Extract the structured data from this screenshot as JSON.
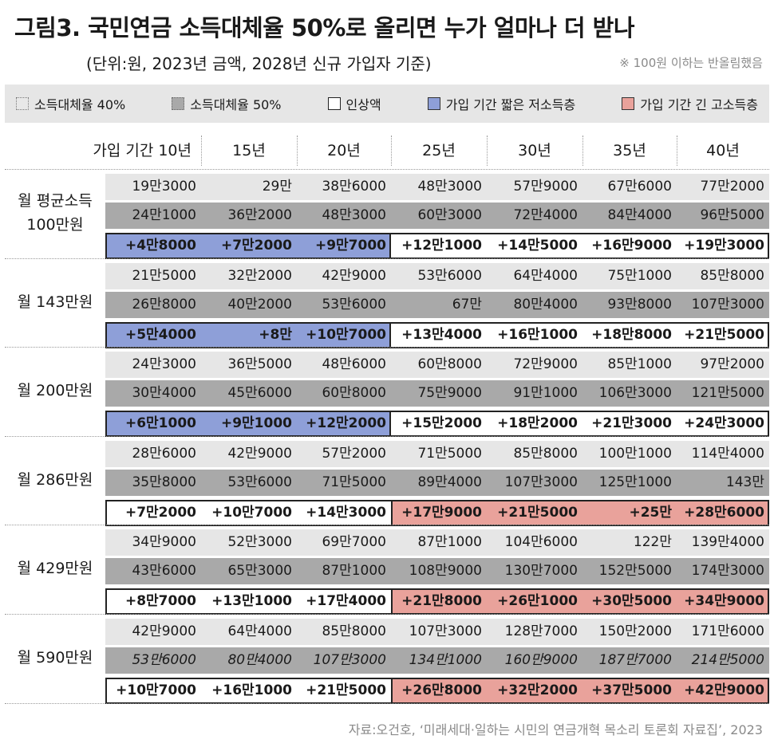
{
  "header": {
    "title": "그림3. 국민연금 소득대체율 50%로 올리면 누가 얼마나 더 받나",
    "subtitle": "(단위:원, 2023년 금액, 2028년 신규 가입자 기준)",
    "note": "※ 100원 이하는 반올림했음"
  },
  "legend": [
    {
      "label": "소득대체율 40%",
      "swatch": "s40"
    },
    {
      "label": "소득대체율 50%",
      "swatch": "s50"
    },
    {
      "label": "인상액",
      "swatch": "inc"
    },
    {
      "label": "가입 기간 짧은 저소득층",
      "swatch": "low"
    },
    {
      "label": "가입 기간 긴 고소득층",
      "swatch": "high"
    }
  ],
  "colors": {
    "rate40": "#e6e6e6",
    "rate50": "#a9a9a9",
    "low_income_short": "#8e9fd8",
    "high_income_long": "#e9a29b"
  },
  "source": "자료:오건호, ‘미래세대·일하는 시민의 연금개혁 목소리 토론회 자료집’, 2023",
  "chart_data": {
    "type": "table",
    "columns": [
      "가입 기간 10년",
      "15년",
      "20년",
      "25년",
      "30년",
      "35년",
      "40년"
    ],
    "groups": [
      {
        "label": "월 평균소득\n100만원",
        "rate40": [
          "19만3000",
          "29만",
          "38만6000",
          "48만3000",
          "57만9000",
          "67만6000",
          "77만2000"
        ],
        "rate50": [
          "24만1000",
          "36만2000",
          "48만3000",
          "60만3000",
          "72만4000",
          "84만4000",
          "96만5000"
        ],
        "increase": [
          "+4만8000",
          "+7만2000",
          "+9만7000",
          "+12만1000",
          "+14만5000",
          "+16만9000",
          "+19만3000"
        ],
        "highlight": {
          "type": "low",
          "from": 0,
          "to": 2
        }
      },
      {
        "label": "월 143만원",
        "rate40": [
          "21만5000",
          "32만2000",
          "42만9000",
          "53만6000",
          "64만4000",
          "75만1000",
          "85만8000"
        ],
        "rate50": [
          "26만8000",
          "40만2000",
          "53만6000",
          "67만",
          "80만4000",
          "93만8000",
          "107만3000"
        ],
        "increase": [
          "+5만4000",
          "+8만",
          "+10만7000",
          "+13만4000",
          "+16만1000",
          "+18만8000",
          "+21만5000"
        ],
        "highlight": {
          "type": "low",
          "from": 0,
          "to": 2
        }
      },
      {
        "label": "월 200만원",
        "rate40": [
          "24만3000",
          "36만5000",
          "48만6000",
          "60만8000",
          "72만9000",
          "85만1000",
          "97만2000"
        ],
        "rate50": [
          "30만4000",
          "45만6000",
          "60만8000",
          "75만9000",
          "91만1000",
          "106만3000",
          "121만5000"
        ],
        "increase": [
          "+6만1000",
          "+9만1000",
          "+12만2000",
          "+15만2000",
          "+18만2000",
          "+21만3000",
          "+24만3000"
        ],
        "highlight": {
          "type": "low",
          "from": 0,
          "to": 2
        }
      },
      {
        "label": "월 286만원",
        "rate40": [
          "28만6000",
          "42만9000",
          "57만2000",
          "71만5000",
          "85만8000",
          "100만1000",
          "114만4000"
        ],
        "rate50": [
          "35만8000",
          "53만6000",
          "71만5000",
          "89만4000",
          "107만3000",
          "125만1000",
          "143만"
        ],
        "increase": [
          "+7만2000",
          "+10만7000",
          "+14만3000",
          "+17만9000",
          "+21만5000",
          "+25만",
          "+28만6000"
        ],
        "highlight": {
          "type": "high",
          "from": 3,
          "to": 6
        }
      },
      {
        "label": "월 429만원",
        "rate40": [
          "34만9000",
          "52만3000",
          "69만7000",
          "87만1000",
          "104만6000",
          "122만",
          "139만4000"
        ],
        "rate50": [
          "43만6000",
          "65만3000",
          "87만1000",
          "108만9000",
          "130만7000",
          "152만5000",
          "174만3000"
        ],
        "increase": [
          "+8만7000",
          "+13만1000",
          "+17만4000",
          "+21만8000",
          "+26만1000",
          "+30만5000",
          "+34만9000"
        ],
        "highlight": {
          "type": "high",
          "from": 3,
          "to": 6
        }
      },
      {
        "label": "월 590만원",
        "rate40": [
          "42만9000",
          "64만4000",
          "85만8000",
          "107만3000",
          "128만7000",
          "150만2000",
          "171만6000"
        ],
        "rate50": [
          "53만6000",
          "80만4000",
          "107만3000",
          "134만1000",
          "160만9000",
          "187만7000",
          "214만5000"
        ],
        "increase": [
          "+10만7000",
          "+16만1000",
          "+21만5000",
          "+26만8000",
          "+32만2000",
          "+37만5000",
          "+42만9000"
        ],
        "highlight": {
          "type": "high",
          "from": 3,
          "to": 6
        }
      }
    ]
  }
}
